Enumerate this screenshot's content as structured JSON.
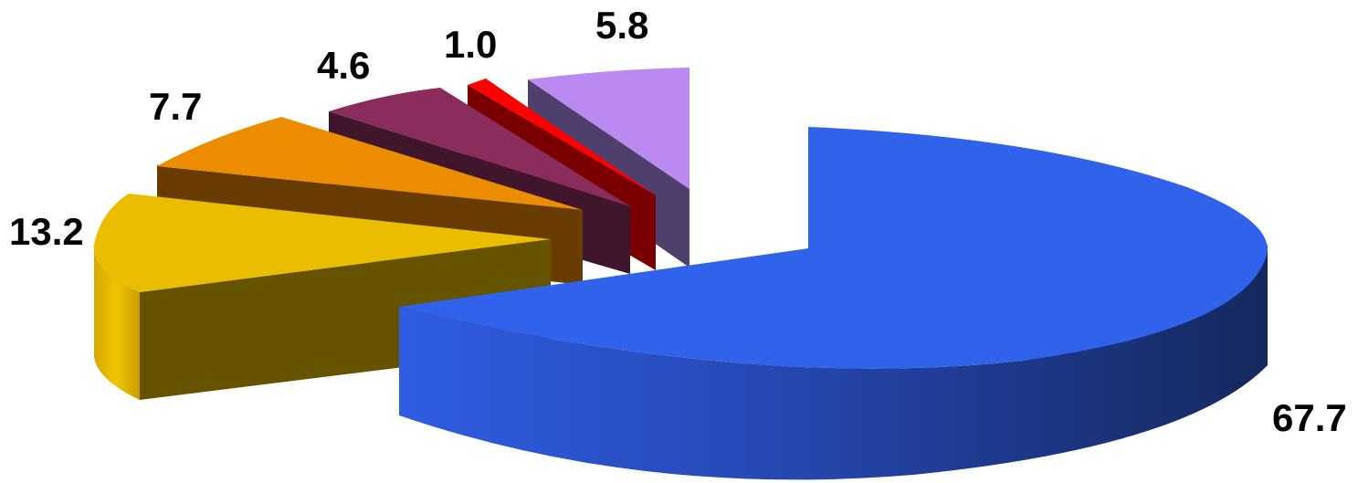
{
  "chart_data": {
    "type": "pie",
    "style": "3d-exploded",
    "title": "",
    "slices": [
      {
        "value": 67.7,
        "label": "67.7",
        "color": "#3162ec",
        "side_color": "#1a307a"
      },
      {
        "value": 13.2,
        "label": "13.2",
        "color": "#ebbd00",
        "side_color": "#655300"
      },
      {
        "value": 7.7,
        "label": "7.7",
        "color": "#ec8c00",
        "side_color": "#683c00"
      },
      {
        "value": 4.6,
        "label": "4.6",
        "color": "#8a2c5c",
        "side_color": "#40162c"
      },
      {
        "value": 1.0,
        "label": "1.0",
        "color": "#ff0000",
        "side_color": "#7a0000"
      },
      {
        "value": 5.8,
        "label": "5.8",
        "color": "#ba8af0",
        "side_color": "#4f3f6d"
      }
    ]
  }
}
